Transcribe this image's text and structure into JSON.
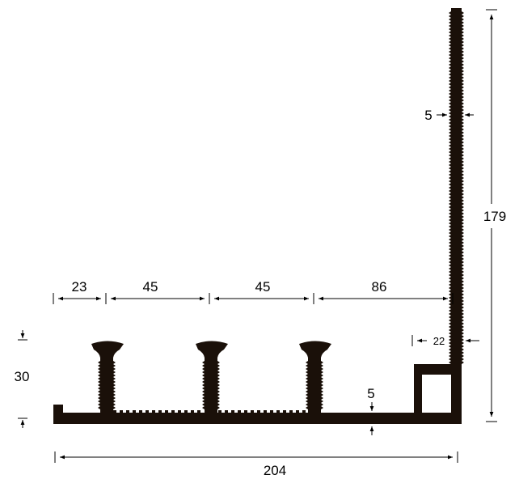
{
  "colors": {
    "profile": "#1a1009",
    "lines": "#000000",
    "background": "#ffffff"
  },
  "dimensions": {
    "spacing_1": "23",
    "spacing_2": "45",
    "spacing_3": "45",
    "spacing_4": "86",
    "total_width": "204",
    "height": "179",
    "wall_thickness": "5",
    "base_thickness": "5",
    "box_width": "22",
    "anchor_height": "30"
  }
}
